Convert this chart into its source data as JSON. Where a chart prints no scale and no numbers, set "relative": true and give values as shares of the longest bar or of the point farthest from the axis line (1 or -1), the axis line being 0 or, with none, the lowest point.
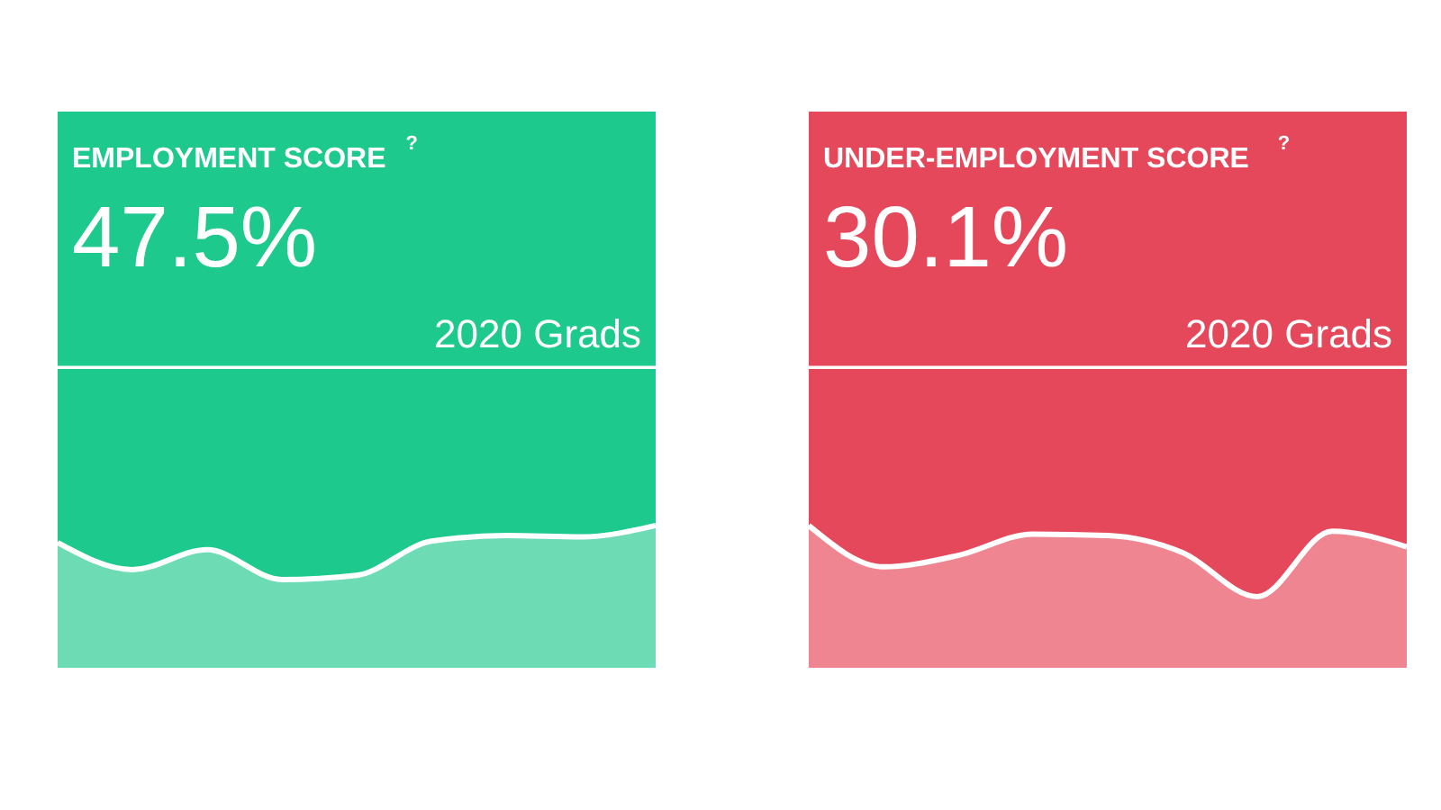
{
  "chart_data": [
    {
      "type": "area",
      "title": "EMPLOYMENT SCORE",
      "annotations": [
        "?",
        "47.5%",
        "2020 Grads"
      ],
      "relative": true,
      "categories": [
        null,
        null,
        null,
        null,
        null,
        null,
        null,
        null,
        null
      ],
      "series": [
        {
          "color": "#6ddcb5",
          "values": [
            0.88,
            0.69,
            0.83,
            0.62,
            0.65,
            0.89,
            0.93,
            0.92,
            1
          ]
        }
      ]
    },
    {
      "type": "area",
      "title": "UNDER-EMPLOYMENT SCORE",
      "annotations": [
        "?",
        "30.1%",
        "2020 Grads"
      ],
      "relative": true,
      "categories": [
        null,
        null,
        null,
        null,
        null,
        null,
        null,
        null,
        null
      ],
      "series": [
        {
          "color": "#ef8590",
          "values": [
            1,
            0.71,
            0.79,
            0.94,
            0.93,
            0.81,
            0.5,
            0.96,
            0.85
          ]
        }
      ]
    }
  ]
}
